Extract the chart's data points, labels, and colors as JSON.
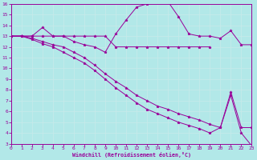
{
  "xlabel": "Windchill (Refroidissement éolien,°C)",
  "bg_color": "#b2e8e8",
  "line_color": "#990099",
  "grid_color": "#d0f0f0",
  "xmin": 0,
  "xmax": 23,
  "ymin": 3,
  "ymax": 16,
  "line1_x": [
    0,
    1,
    2,
    3,
    4,
    5,
    6,
    7,
    8,
    9,
    10,
    11,
    12,
    13,
    14,
    15,
    16,
    17,
    18,
    19
  ],
  "line1_y": [
    13,
    13,
    13,
    13,
    13,
    13,
    13,
    13,
    13,
    13,
    12,
    12,
    12,
    12,
    12,
    12,
    12,
    12,
    12,
    12
  ],
  "line2_x": [
    0,
    1,
    2,
    3,
    4,
    5,
    6,
    7,
    8,
    9,
    10,
    11,
    12,
    13,
    14,
    15,
    16,
    17,
    18,
    19,
    20,
    21,
    22,
    23
  ],
  "line2_y": [
    13,
    13,
    13,
    13.8,
    13,
    13,
    12.5,
    12.2,
    12,
    11.5,
    13.2,
    14.5,
    15.7,
    16.0,
    16.2,
    16.2,
    14.8,
    13.2,
    13.0,
    13.0,
    12.8,
    13.5,
    12.2,
    12.2
  ],
  "line3_x": [
    0,
    1,
    2,
    3,
    4,
    5,
    6,
    7,
    8,
    9,
    10,
    11,
    12,
    13,
    14,
    15,
    16,
    17,
    18,
    19,
    20,
    21,
    22,
    23
  ],
  "line3_y": [
    13,
    13,
    12.8,
    12.5,
    12.2,
    12.0,
    11.5,
    11.0,
    10.3,
    9.5,
    8.8,
    8.2,
    7.5,
    7.0,
    6.5,
    6.2,
    5.8,
    5.5,
    5.2,
    4.8,
    4.5,
    7.8,
    4.5,
    4.5
  ],
  "line4_x": [
    0,
    1,
    2,
    3,
    4,
    5,
    6,
    7,
    8,
    9,
    10,
    11,
    12,
    13,
    14,
    15,
    16,
    17,
    18,
    19,
    20,
    21,
    22,
    23
  ],
  "line4_y": [
    13,
    13,
    12.7,
    12.3,
    12.0,
    11.5,
    11.0,
    10.5,
    9.8,
    9.0,
    8.2,
    7.5,
    6.8,
    6.2,
    5.8,
    5.4,
    5.0,
    4.7,
    4.4,
    4.0,
    4.5,
    7.5,
    4.0,
    2.8
  ]
}
